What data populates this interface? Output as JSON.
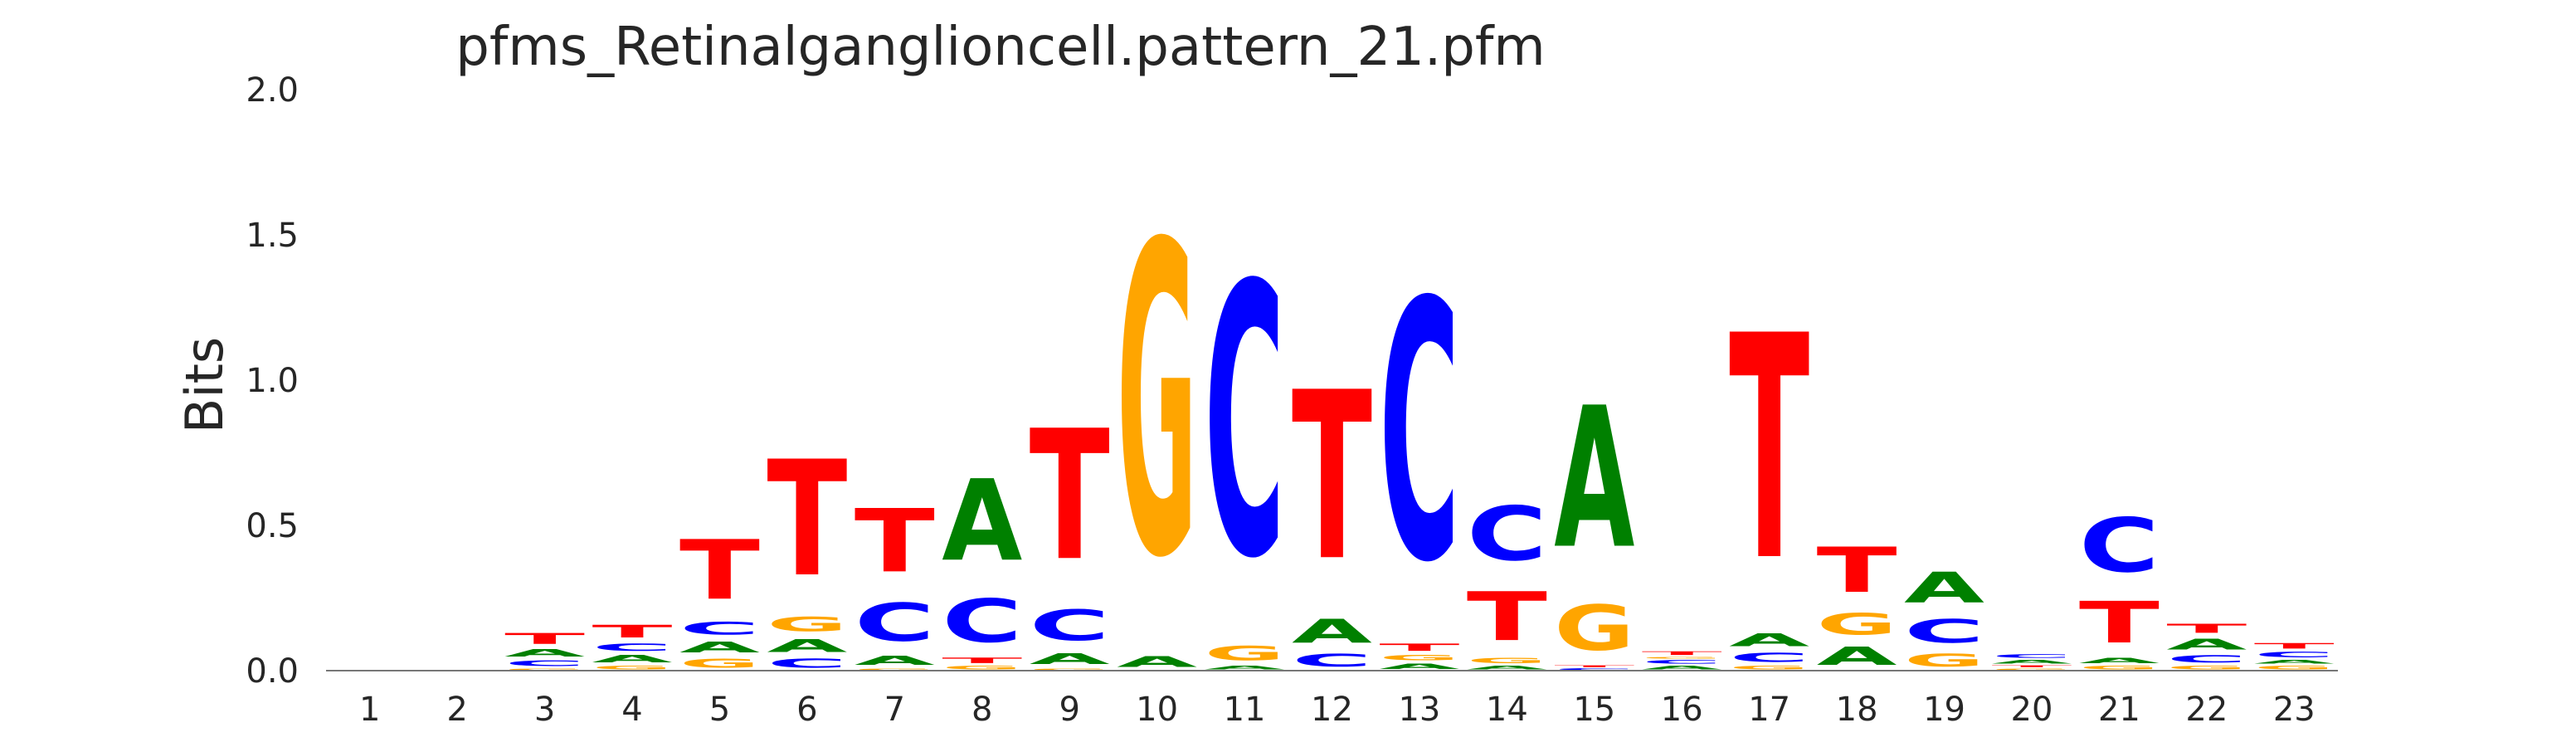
{
  "chart_data": {
    "type": "sequence-logo",
    "title": "pfms_Retinalganglioncell.pattern_21.pfm",
    "xlabel": "",
    "ylabel": "Bits",
    "ylim": [
      0,
      2.0
    ],
    "yticks": [
      "0.0",
      "0.5",
      "1.0",
      "1.5",
      "2.0"
    ],
    "grid": false,
    "colors": {
      "A": "#008000",
      "C": "#0000ff",
      "G": "#ffa500",
      "T": "#ff0000"
    },
    "positions": [
      {
        "x": "1",
        "stack": []
      },
      {
        "x": "2",
        "stack": []
      },
      {
        "x": "3",
        "stack": [
          {
            "b": "G",
            "h": 0.01
          },
          {
            "b": "C",
            "h": 0.03
          },
          {
            "b": "A",
            "h": 0.04
          },
          {
            "b": "T",
            "h": 0.06
          }
        ]
      },
      {
        "x": "4",
        "stack": [
          {
            "b": "G",
            "h": 0.02
          },
          {
            "b": "A",
            "h": 0.04
          },
          {
            "b": "C",
            "h": 0.04
          },
          {
            "b": "T",
            "h": 0.07
          }
        ]
      },
      {
        "x": "5",
        "stack": [
          {
            "b": "G",
            "h": 0.05
          },
          {
            "b": "A",
            "h": 0.06
          },
          {
            "b": "C",
            "h": 0.07
          },
          {
            "b": "T",
            "h": 0.33
          }
        ]
      },
      {
        "x": "6",
        "stack": [
          {
            "b": "C",
            "h": 0.05
          },
          {
            "b": "A",
            "h": 0.07
          },
          {
            "b": "G",
            "h": 0.08
          },
          {
            "b": "T",
            "h": 0.64
          }
        ]
      },
      {
        "x": "7",
        "stack": [
          {
            "b": "G",
            "h": 0.01
          },
          {
            "b": "A",
            "h": 0.05
          },
          {
            "b": "C",
            "h": 0.21
          },
          {
            "b": "T",
            "h": 0.35
          }
        ]
      },
      {
        "x": "8",
        "stack": [
          {
            "b": "G",
            "h": 0.02
          },
          {
            "b": "T",
            "h": 0.03
          },
          {
            "b": "C",
            "h": 0.24
          },
          {
            "b": "A",
            "h": 0.45
          }
        ]
      },
      {
        "x": "9",
        "stack": [
          {
            "b": "G",
            "h": 0.01
          },
          {
            "b": "A",
            "h": 0.06
          },
          {
            "b": "C",
            "h": 0.17
          },
          {
            "b": "T",
            "h": 0.72
          }
        ]
      },
      {
        "x": "10",
        "stack": [
          {
            "b": "A",
            "h": 0.06
          },
          {
            "b": "G",
            "h": 1.72
          }
        ]
      },
      {
        "x": "11",
        "stack": [
          {
            "b": "A",
            "h": 0.02
          },
          {
            "b": "G",
            "h": 0.08
          },
          {
            "b": "C",
            "h": 1.5
          }
        ]
      },
      {
        "x": "12",
        "stack": [
          {
            "b": "C",
            "h": 0.07
          },
          {
            "b": "A",
            "h": 0.13
          },
          {
            "b": "T",
            "h": 0.93
          }
        ]
      },
      {
        "x": "13",
        "stack": [
          {
            "b": "A",
            "h": 0.03
          },
          {
            "b": "G",
            "h": 0.03
          },
          {
            "b": "T",
            "h": 0.04
          },
          {
            "b": "C",
            "h": 1.43
          }
        ]
      },
      {
        "x": "14",
        "stack": [
          {
            "b": "A",
            "h": 0.02
          },
          {
            "b": "G",
            "h": 0.03
          },
          {
            "b": "T",
            "h": 0.27
          },
          {
            "b": "C",
            "h": 0.3
          }
        ]
      },
      {
        "x": "15",
        "stack": [
          {
            "b": "C",
            "h": 0.01
          },
          {
            "b": "T",
            "h": 0.01
          },
          {
            "b": "G",
            "h": 0.25
          },
          {
            "b": "A",
            "h": 0.78
          }
        ]
      },
      {
        "x": "16",
        "stack": [
          {
            "b": "A",
            "h": 0.02
          },
          {
            "b": "C",
            "h": 0.02
          },
          {
            "b": "G",
            "h": 0.01
          },
          {
            "b": "T",
            "h": 0.02
          }
        ]
      },
      {
        "x": "17",
        "stack": [
          {
            "b": "G",
            "h": 0.02
          },
          {
            "b": "C",
            "h": 0.05
          },
          {
            "b": "A",
            "h": 0.07
          },
          {
            "b": "T",
            "h": 1.24
          }
        ]
      },
      {
        "x": "18",
        "stack": [
          {
            "b": "A",
            "h": 0.1
          },
          {
            "b": "G",
            "h": 0.12
          },
          {
            "b": "T",
            "h": 0.25
          }
        ]
      },
      {
        "x": "19",
        "stack": [
          {
            "b": "G",
            "h": 0.07
          },
          {
            "b": "C",
            "h": 0.13
          },
          {
            "b": "A",
            "h": 0.17
          }
        ]
      },
      {
        "x": "20",
        "stack": [
          {
            "b": "G",
            "h": 0.01
          },
          {
            "b": "T",
            "h": 0.01
          },
          {
            "b": "A",
            "h": 0.02
          },
          {
            "b": "C",
            "h": 0.02
          }
        ]
      },
      {
        "x": "21",
        "stack": [
          {
            "b": "G",
            "h": 0.02
          },
          {
            "b": "A",
            "h": 0.03
          },
          {
            "b": "T",
            "h": 0.23
          },
          {
            "b": "C",
            "h": 0.3
          }
        ]
      },
      {
        "x": "22",
        "stack": [
          {
            "b": "G",
            "h": 0.02
          },
          {
            "b": "C",
            "h": 0.04
          },
          {
            "b": "A",
            "h": 0.06
          },
          {
            "b": "T",
            "h": 0.05
          }
        ]
      },
      {
        "x": "23",
        "stack": [
          {
            "b": "G",
            "h": 0.02
          },
          {
            "b": "A",
            "h": 0.02
          },
          {
            "b": "C",
            "h": 0.03
          },
          {
            "b": "T",
            "h": 0.03
          }
        ]
      }
    ]
  }
}
